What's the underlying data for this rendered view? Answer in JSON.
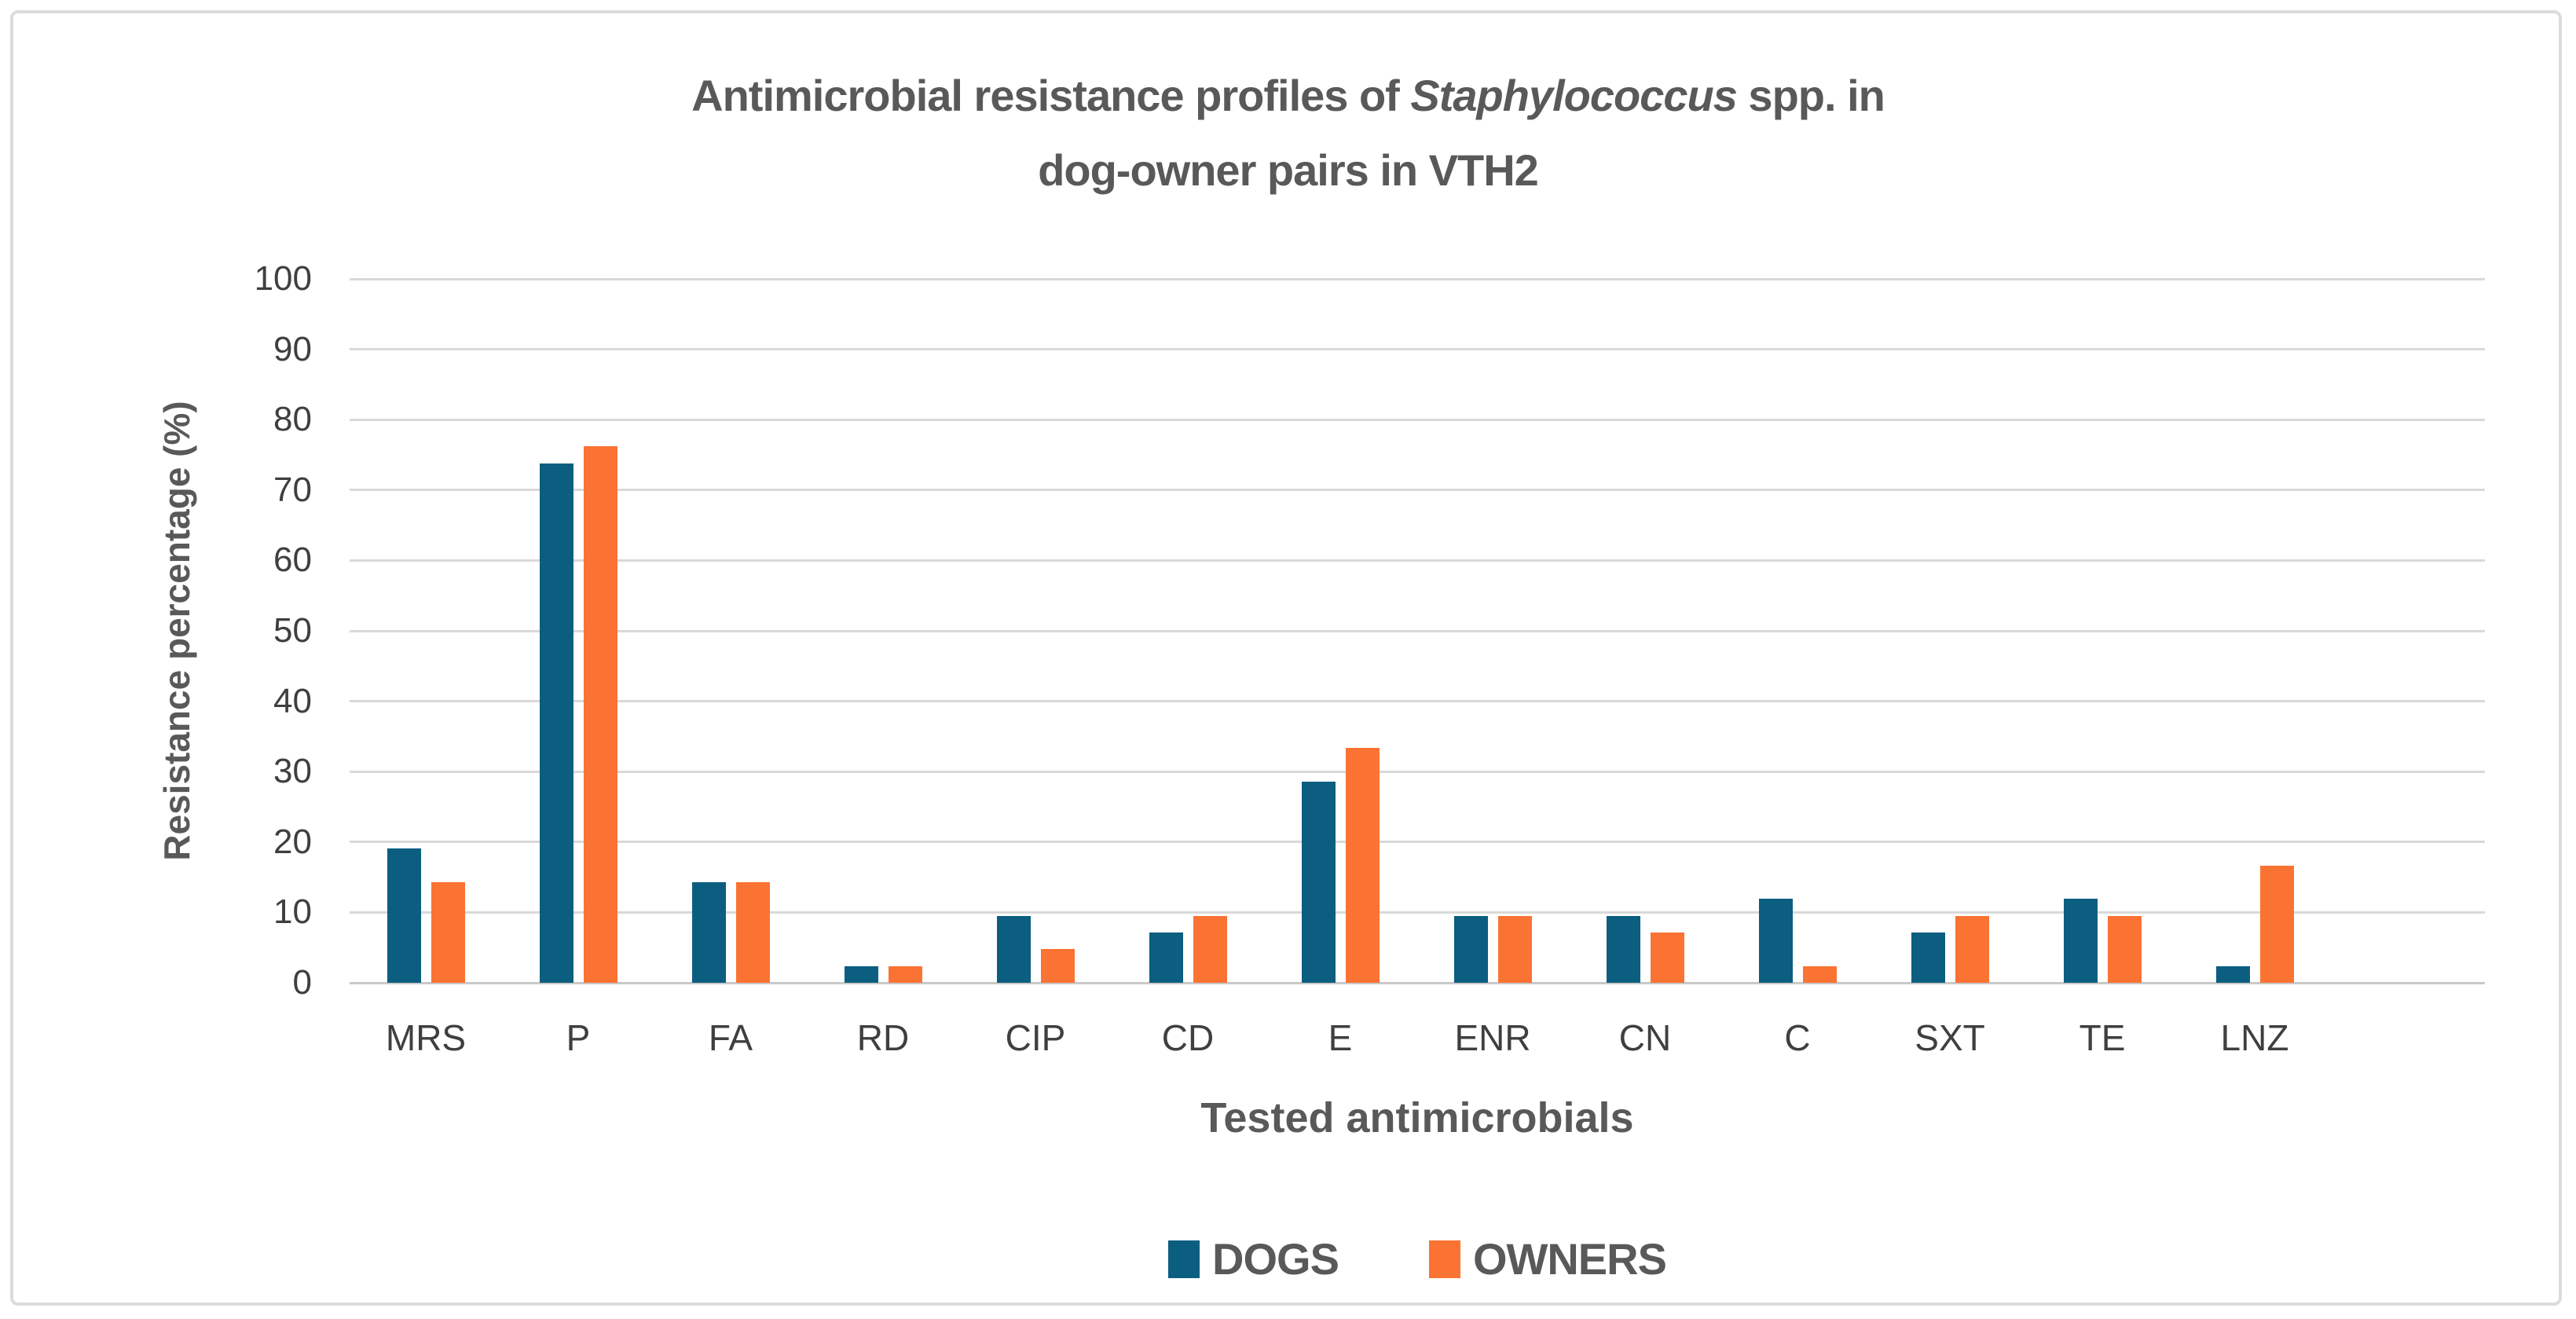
{
  "figure": {
    "title": {
      "prefix": "Antimicrobial resistance profiles of ",
      "italic": "Staphylococcus",
      "suffix": " spp. in",
      "line2": "dog-owner pairs in VTH2"
    },
    "colors": {
      "dogs": "#0b5e80",
      "owners": "#fa7333",
      "gridline": "#d9d9d9",
      "baseline": "#c9c9c9",
      "tick_text": "#3f3f3f",
      "title_text": "#595959",
      "frame_border": "#dcdcdc"
    }
  },
  "chart_data": {
    "type": "bar",
    "title": "Antimicrobial resistance profiles of Staphylococcus spp. in dog-owner pairs in VTH2",
    "xlabel": "Tested antimicrobials",
    "ylabel": "Resistance percentage (%)",
    "ylim": [
      0,
      100
    ],
    "ytick_step": 10,
    "grid": "horizontal",
    "legend_position": "bottom",
    "categories": [
      "MRS",
      "P",
      "FA",
      "RD",
      "CIP",
      "CD",
      "E",
      "ENR",
      "CN",
      "C",
      "SXT",
      "TE",
      "LNZ"
    ],
    "series": [
      {
        "name": "DOGS",
        "color": "#0b5e80",
        "values": [
          19.05,
          73.81,
          14.29,
          2.38,
          9.52,
          7.14,
          28.57,
          9.52,
          9.52,
          11.9,
          7.14,
          11.9,
          2.38
        ]
      },
      {
        "name": "OWNERS",
        "color": "#fa7333",
        "values": [
          14.29,
          76.19,
          14.29,
          2.38,
          4.76,
          9.52,
          33.33,
          9.52,
          7.14,
          2.38,
          9.52,
          9.52,
          16.67
        ]
      }
    ]
  }
}
